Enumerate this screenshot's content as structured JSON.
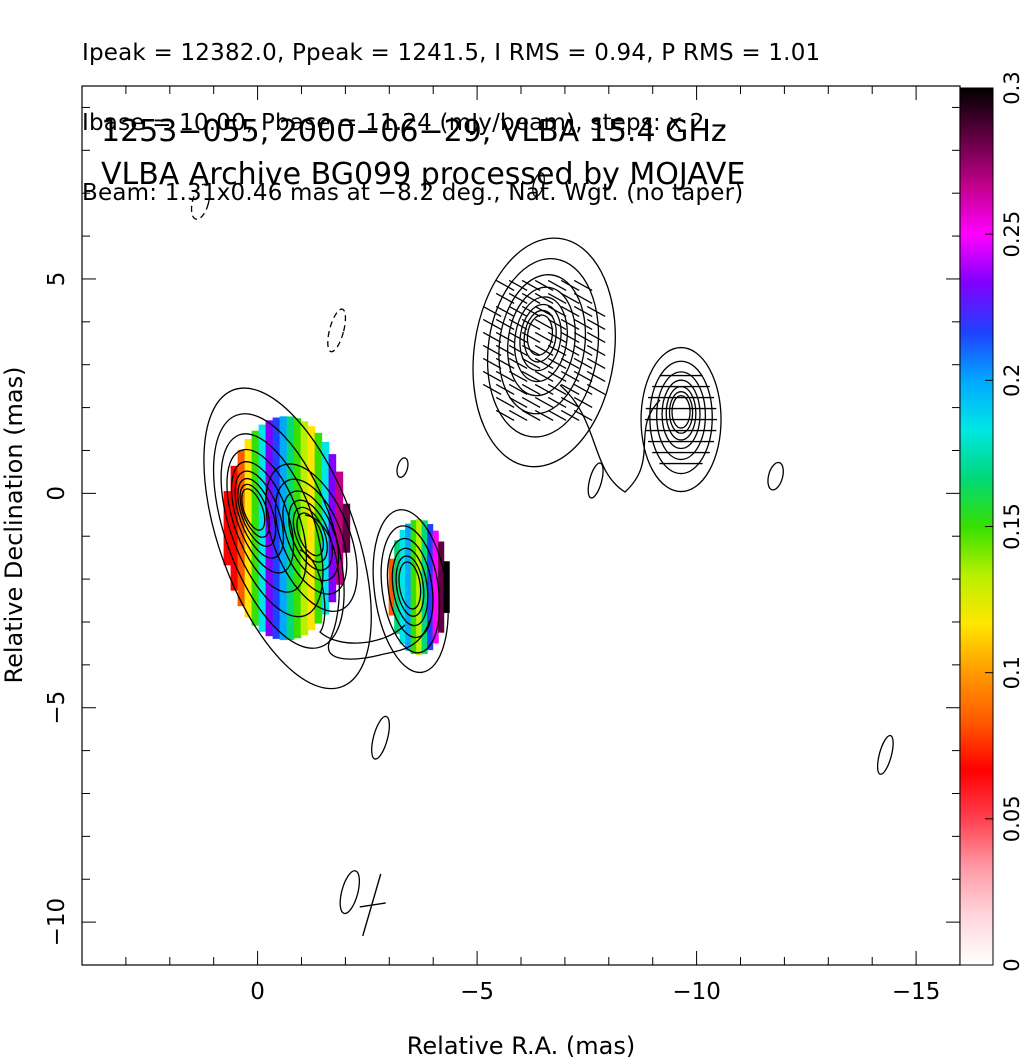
{
  "header": {
    "line1": "Ipeak = 12382.0, Ppeak = 1241.5, I RMS = 0.94, P RMS = 1.01",
    "line2": "Ibase = 10.00, Pbase = 11.24 (mJy/beam), steps: x 2",
    "line3": "Beam: 1.31x0.46 mas at −8.2 deg., Nat. Wgt. (no taper)"
  },
  "panel": {
    "title_line1": "1253−055, 2000−06−29, VLBA 15.4 GHz",
    "title_line2": "VLBA Archive BG099 processed by MOJAVE"
  },
  "chart_data": {
    "type": "heatmap",
    "xlabel": "Relative R.A. (mas)",
    "ylabel": "Relative Declination (mas)",
    "xlim": [
      4,
      -16
    ],
    "ylim": [
      -11,
      9.5
    ],
    "x_ticks": [
      0,
      -5,
      -10,
      -15
    ],
    "x_tick_labels": [
      "0",
      "−5",
      "−10",
      "−15"
    ],
    "y_ticks": [
      5,
      0,
      -5,
      -10
    ],
    "y_tick_labels": [
      "5",
      "0",
      "−5",
      "−10"
    ],
    "colorbar": {
      "range": [
        0,
        0.3
      ],
      "ticks": [
        0,
        0.05,
        0.1,
        0.15,
        0.2,
        0.25,
        0.3
      ],
      "tick_labels": [
        "0",
        "0.05",
        "0.1",
        "0.15",
        "0.2",
        "0.25",
        "0.3"
      ],
      "colors": [
        "#ffffff",
        "#ffd6dc",
        "#ff9aa6",
        "#ff4050",
        "#ff0000",
        "#ff5a00",
        "#ff9a00",
        "#ffe600",
        "#b8f000",
        "#36e000",
        "#00d87a",
        "#00e6e6",
        "#00a8ff",
        "#2040ff",
        "#8000ff",
        "#ff00ff",
        "#c0008a",
        "#600040",
        "#000000"
      ]
    },
    "intensity_components": [
      {
        "x": 0.0,
        "y": 0.0,
        "peak_level": 9
      },
      {
        "x": -1.0,
        "y": -0.8,
        "peak_level": 6
      },
      {
        "x": -3.6,
        "y": -2.0,
        "peak_level": 6
      },
      {
        "x": -6.3,
        "y": 3.8,
        "peak_level": 8
      },
      {
        "x": -9.6,
        "y": 2.0,
        "peak_level": 7
      }
    ],
    "contour_base_mJy": 10.0,
    "contour_step": "x 2",
    "fractional_polarization_regions": [
      {
        "x": 0.0,
        "y": -0.3,
        "frac_range": [
          0.03,
          0.25
        ]
      },
      {
        "x": -3.6,
        "y": -2.0,
        "frac_range": [
          0.12,
          0.3
        ]
      }
    ],
    "beam": {
      "major_mas": 1.31,
      "minor_mas": 0.46,
      "pa_deg": -8.2
    }
  },
  "colors": {
    "background": "#ffffff",
    "contour": "#000000"
  }
}
